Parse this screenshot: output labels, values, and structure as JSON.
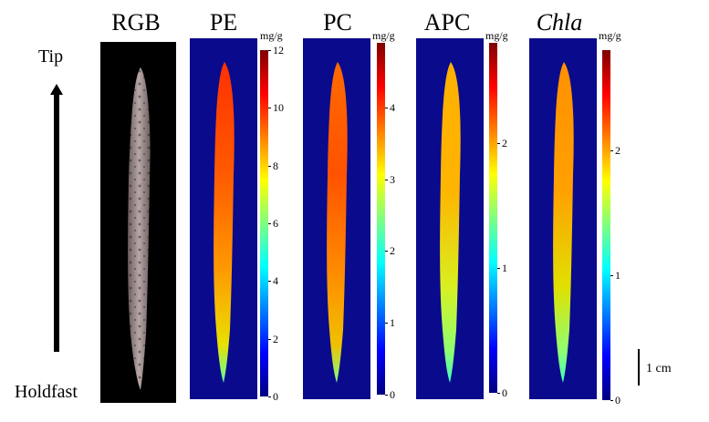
{
  "axis_labels": {
    "top": "Tip",
    "bottom": "Holdfast"
  },
  "scale_bar": {
    "label": "1 cm"
  },
  "unit_label": "mg/g",
  "panels": [
    {
      "id": "rgb",
      "title": "RGB",
      "italic": false,
      "kind": "rgb"
    },
    {
      "id": "pe",
      "title": "PE",
      "italic": false,
      "kind": "map",
      "colorbar": {
        "min": 0,
        "max": 12,
        "ticks": [
          "0",
          "2",
          "4",
          "6",
          "8",
          "10",
          "12"
        ],
        "tick_values": [
          0,
          2,
          4,
          6,
          8,
          10,
          12
        ]
      },
      "level": 0.85
    },
    {
      "id": "pc",
      "title": "PC",
      "italic": false,
      "kind": "map",
      "colorbar": {
        "min": 0,
        "max": 4.9,
        "ticks": [
          "0",
          "1",
          "2",
          "3",
          "4"
        ],
        "tick_values": [
          0,
          1,
          2,
          3,
          4
        ]
      },
      "level": 0.82
    },
    {
      "id": "apc",
      "title": "APC",
      "italic": false,
      "kind": "map",
      "colorbar": {
        "min": 0,
        "max": 2.8,
        "ticks": [
          "0",
          "1",
          "2"
        ],
        "tick_values": [
          0,
          1,
          2
        ]
      },
      "level": 0.62
    },
    {
      "id": "chla",
      "title": "Chla",
      "italic": true,
      "kind": "map",
      "colorbar": {
        "min": 0,
        "max": 2.8,
        "ticks": [
          "0",
          "1",
          "2"
        ],
        "tick_values": [
          0,
          1,
          2
        ]
      },
      "level": 0.68
    }
  ],
  "colors": {
    "map_background": "#0a0a8c",
    "rgb_background": "#000000",
    "jet_stops": [
      "#00007f",
      "#0000ff",
      "#007fff",
      "#00ffff",
      "#7fff7f",
      "#ffff00",
      "#ff7f00",
      "#ff0000",
      "#7f0000"
    ]
  }
}
